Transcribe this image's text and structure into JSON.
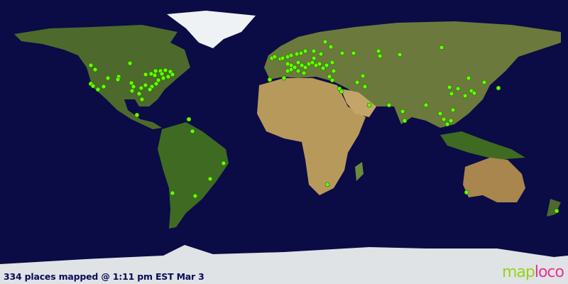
{
  "caption": "334 places mapped @ 1:11 pm EST Mar 3",
  "logo": {
    "text": "maploco",
    "part1": "map",
    "part2": "loco"
  },
  "colors": {
    "ocean": "#0b0b45",
    "marker": "#66ff00",
    "marker_outline": "#1a6600",
    "logo_map": "#9ad219",
    "logo_loco": "#e8338f"
  },
  "projection": "equirectangular",
  "markers_lonlat": [
    [
      -122.4,
      48.6
    ],
    [
      -119.7,
      45.9
    ],
    [
      -111.6,
      40.5
    ],
    [
      -104.8,
      41.4
    ],
    [
      -97.6,
      49.9
    ],
    [
      -122.4,
      36.9
    ],
    [
      -121,
      35.5
    ],
    [
      -117.9,
      33.3
    ],
    [
      -114.3,
      35.1
    ],
    [
      -105.3,
      39.6
    ],
    [
      -96.7,
      37.4
    ],
    [
      -95.4,
      35.1
    ],
    [
      -96.3,
      32.4
    ],
    [
      -87.7,
      42.8
    ],
    [
      -84.2,
      43.2
    ],
    [
      -81.4,
      45
    ],
    [
      -78.3,
      45
    ],
    [
      -75.2,
      45.5
    ],
    [
      -72,
      44.6
    ],
    [
      -70.7,
      42.8
    ],
    [
      -73.4,
      41.4
    ],
    [
      -76.5,
      40.5
    ],
    [
      -79.6,
      39.2
    ],
    [
      -81,
      36.9
    ],
    [
      -83.7,
      35.1
    ],
    [
      -85,
      33.3
    ],
    [
      -90.5,
      34.2
    ],
    [
      -87.8,
      36
    ],
    [
      -91.8,
      30.6
    ],
    [
      -93.2,
      17.1
    ],
    [
      -60.3,
      14.4
    ],
    [
      -58,
      6.8
    ],
    [
      -90,
      27
    ],
    [
      -81.9,
      42.3
    ],
    [
      -77.4,
      43.2
    ],
    [
      -38.3,
      -13.5
    ],
    [
      -46.8,
      -23.4
    ],
    [
      -70.7,
      -32.4
    ],
    [
      -56.3,
      -34.2
    ],
    [
      -7.7,
      53.1
    ],
    [
      -5.9,
      54
    ],
    [
      -2.3,
      52.7
    ],
    [
      -0.9,
      53.1
    ],
    [
      2.3,
      54
    ],
    [
      4.5,
      54.9
    ],
    [
      8.1,
      55.8
    ],
    [
      10.8,
      56.3
    ],
    [
      13.5,
      57.6
    ],
    [
      18.9,
      57.6
    ],
    [
      26.1,
      63.5
    ],
    [
      29.7,
      60.3
    ],
    [
      36.9,
      56.3
    ],
    [
      44.1,
      56.3
    ],
    [
      59.9,
      57.6
    ],
    [
      60.8,
      54.5
    ],
    [
      73.4,
      55.4
    ],
    [
      99.9,
      59.9
    ],
    [
      -9,
      39.6
    ],
    [
      0,
      40.5
    ],
    [
      2.3,
      45
    ],
    [
      4.5,
      48.6
    ],
    [
      6.8,
      47.3
    ],
    [
      9,
      50.4
    ],
    [
      11.3,
      48.6
    ],
    [
      13.5,
      47.3
    ],
    [
      15.8,
      49.5
    ],
    [
      18,
      50.4
    ],
    [
      20.3,
      48.6
    ],
    [
      22.5,
      49.5
    ],
    [
      24.8,
      46.8
    ],
    [
      27,
      48.6
    ],
    [
      30.6,
      50.4
    ],
    [
      2.3,
      49.5
    ],
    [
      4.5,
      45.9
    ],
    [
      9,
      45
    ],
    [
      12.6,
      43.7
    ],
    [
      31.5,
      45
    ],
    [
      28.8,
      41.4
    ],
    [
      35.1,
      33.8
    ],
    [
      36.5,
      32
    ],
    [
      46.4,
      37.8
    ],
    [
      51.3,
      35.1
    ],
    [
      54,
      23.4
    ],
    [
      66.6,
      23.4
    ],
    [
      75.2,
      19.4
    ],
    [
      76.5,
      13.5
    ],
    [
      90,
      23.4
    ],
    [
      99,
      18
    ],
    [
      101.3,
      14.4
    ],
    [
      103.5,
      11.3
    ],
    [
      105.8,
      13.5
    ],
    [
      107.1,
      20.3
    ],
    [
      106.2,
      30.6
    ],
    [
      104.9,
      34.7
    ],
    [
      110.3,
      33.8
    ],
    [
      114.8,
      29.3
    ],
    [
      117,
      40.5
    ],
    [
      118.8,
      32.4
    ],
    [
      120.6,
      31
    ],
    [
      126.9,
      37.8
    ],
    [
      135.9,
      34.2
    ],
    [
      115.7,
      -31.9
    ],
    [
      172.8,
      -43.7
    ],
    [
      27.5,
      -27
    ],
    [
      30.6,
      39.2
    ],
    [
      19,
      53.1
    ],
    [
      23.4,
      55.8
    ],
    [
      50,
      41.9
    ]
  ]
}
